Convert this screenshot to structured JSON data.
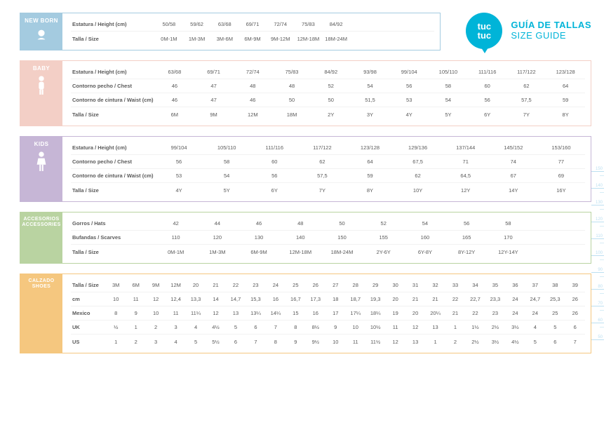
{
  "header": {
    "logo_line1": "tuc",
    "logo_line2": "tuc",
    "title_line1": "GUÍA DE TALLAS",
    "title_line2": "SIZE GUIDE",
    "accent_color": "#00b4d8"
  },
  "colors": {
    "newborn": "#a4cbe0",
    "baby": "#f3cfc6",
    "kids": "#c6b6d6",
    "acc": "#b9d3a1",
    "shoes": "#f5c77f",
    "text": "#5a5a5a",
    "background": "#ffffff",
    "ruler": "#bcdff1"
  },
  "sections": {
    "newborn": {
      "title": "NEW BORN",
      "rows": [
        {
          "h": "Estatura / Height (cm)",
          "v": [
            "50/58",
            "59/62",
            "63/68",
            "69/71",
            "72/74",
            "75/83",
            "84/92"
          ]
        },
        {
          "h": "Talla / Size",
          "v": [
            "0M-1M",
            "1M-3M",
            "3M-6M",
            "6M-9M",
            "9M-12M",
            "12M-18M",
            "18M-24M"
          ]
        }
      ]
    },
    "baby": {
      "title": "BABY",
      "rows": [
        {
          "h": "Estatura / Height (cm)",
          "v": [
            "63/68",
            "69/71",
            "72/74",
            "75/83",
            "84/92",
            "93/98",
            "99/104",
            "105/110",
            "111/116",
            "117/122",
            "123/128"
          ]
        },
        {
          "h": "Contorno pecho / Chest",
          "v": [
            "46",
            "47",
            "48",
            "48",
            "52",
            "54",
            "56",
            "58",
            "60",
            "62",
            "64"
          ]
        },
        {
          "h": "Contorno de cintura / Waist (cm)",
          "v": [
            "46",
            "47",
            "46",
            "50",
            "50",
            "51,5",
            "53",
            "54",
            "56",
            "57,5",
            "59"
          ]
        },
        {
          "h": "Talla / Size",
          "v": [
            "6M",
            "9M",
            "12M",
            "18M",
            "2Y",
            "3Y",
            "4Y",
            "5Y",
            "6Y",
            "7Y",
            "8Y"
          ]
        }
      ]
    },
    "kids": {
      "title": "KIDS",
      "rows": [
        {
          "h": "Estatura / Height (cm)",
          "v": [
            "99/104",
            "105/110",
            "111/116",
            "117/122",
            "123/128",
            "129/136",
            "137/144",
            "145/152",
            "153/160"
          ]
        },
        {
          "h": "Contorno pecho / Chest",
          "v": [
            "56",
            "58",
            "60",
            "62",
            "64",
            "67,5",
            "71",
            "74",
            "77"
          ]
        },
        {
          "h": "Contorno de cintura / Waist (cm)",
          "v": [
            "53",
            "54",
            "56",
            "57,5",
            "59",
            "62",
            "64,5",
            "67",
            "69"
          ]
        },
        {
          "h": "Talla / Size",
          "v": [
            "4Y",
            "5Y",
            "6Y",
            "7Y",
            "8Y",
            "10Y",
            "12Y",
            "14Y",
            "16Y"
          ]
        }
      ]
    },
    "acc": {
      "title1": "ACCESORIOS",
      "title2": "ACCESSORIES",
      "rows": [
        {
          "h": "Gorros / Hats",
          "v": [
            "42",
            "44",
            "46",
            "48",
            "50",
            "52",
            "54",
            "56",
            "58"
          ]
        },
        {
          "h": "Bufandas / Scarves",
          "v": [
            "110",
            "120",
            "130",
            "140",
            "150",
            "155",
            "160",
            "165",
            "170"
          ]
        },
        {
          "h": "Talla / Size",
          "v": [
            "0M-1M",
            "1M-3M",
            "6M-9M",
            "12M-18M",
            "18M-24M",
            "2Y-6Y",
            "6Y-8Y",
            "8Y-12Y",
            "12Y-14Y"
          ]
        }
      ]
    },
    "shoes": {
      "title1": "CALZADO",
      "title2": "SHOES",
      "rows": [
        {
          "h": "Talla / Size",
          "v": [
            "3M",
            "6M",
            "9M",
            "12M",
            "20",
            "21",
            "22",
            "23",
            "24",
            "25",
            "26",
            "27",
            "28",
            "29",
            "30",
            "31",
            "32",
            "33",
            "34",
            "35",
            "36",
            "37",
            "38",
            "39"
          ]
        },
        {
          "h": "cm",
          "v": [
            "10",
            "11",
            "12",
            "12,4",
            "13,3",
            "14",
            "14,7",
            "15,3",
            "16",
            "16,7",
            "17,3",
            "18",
            "18,7",
            "19,3",
            "20",
            "21",
            "21",
            "22",
            "22,7",
            "23,3",
            "24",
            "24,7",
            "25,3",
            "26"
          ]
        },
        {
          "h": "Mexico",
          "v": [
            "8",
            "9",
            "10",
            "11",
            "11¼",
            "12",
            "13",
            "13¼",
            "14¼",
            "15",
            "16",
            "17",
            "17¼",
            "18¼",
            "19",
            "20",
            "20¼",
            "21",
            "22",
            "23",
            "24",
            "24",
            "25",
            "26"
          ]
        },
        {
          "h": "UK",
          "v": [
            "½",
            "1",
            "2",
            "3",
            "4",
            "4½",
            "5",
            "6",
            "7",
            "8",
            "8½",
            "9",
            "10",
            "10½",
            "11",
            "12",
            "13",
            "1",
            "1½",
            "2½",
            "3½",
            "4",
            "5",
            "6"
          ]
        },
        {
          "h": "US",
          "v": [
            "1",
            "2",
            "3",
            "4",
            "5",
            "5½",
            "6",
            "7",
            "8",
            "9",
            "9½",
            "10",
            "11",
            "11½",
            "12",
            "13",
            "1",
            "2",
            "2½",
            "3½",
            "4½",
            "5",
            "6",
            "7"
          ]
        }
      ]
    }
  },
  "ruler": {
    "ticks": [
      "150",
      "140",
      "130",
      "120",
      "110",
      "100",
      "90",
      "80",
      "70",
      "60",
      "50"
    ]
  }
}
